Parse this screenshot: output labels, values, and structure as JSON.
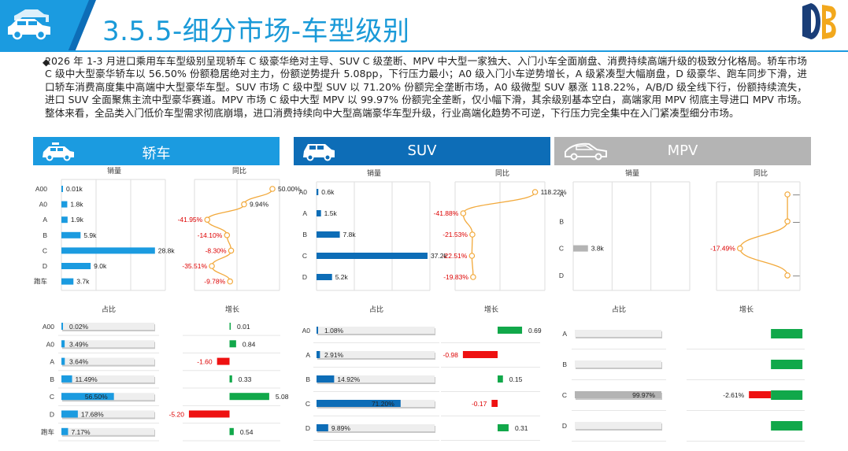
{
  "header": {
    "title": "3.5.5-细分市场-车型级别"
  },
  "summary": "2026 年 1-3 月进口乘用车车型级别呈现轿车 C 级豪华绝对主导、SUV C 级垄断、MPV 中大型一家独大、入门小车全面崩盘、消费持续高端升级的极致分化格局。轿车市场 C 级中大型豪华轿车以 56.50% 份额稳居绝对主力，份额逆势提升 5.08pp，下行压力最小；A0 级入门小车逆势增长，A 级紧凑型大幅崩盘，D 级豪华、跑车同步下滑，进口轿车消费高度集中高端中大型豪华车型。SUV 市场 C 级中型 SUV 以 71.20% 份额完全垄断市场，A0 级微型 SUV 暴涨 118.22%，A/B/D 级全线下行，份额持续流失，进口 SUV 全面聚焦主流中型豪华赛道。MPV 市场 C 级中大型 MPV 以 99.97% 份额完全垄断，仅小幅下滑，其余级别基本空白，高端家用 MPV 彻底主导进口 MPV 市场。整体来看，全品类入门低价车型需求彻底崩塌，进口消费持续向中大型高端豪华车型升级，行业高端化趋势不可逆，下行压力完全集中在入门紧凑型细分市场。",
  "panels": [
    {
      "name": "轿车",
      "color": "#1b9be0"
    },
    {
      "name": "SUV",
      "color": "#0d6db7"
    },
    {
      "name": "MPV",
      "color": "#b4b4b4"
    }
  ],
  "chart_labels": {
    "sales": "销量",
    "yoy": "同比",
    "share": "占比",
    "growth": "增长"
  },
  "chart_data": [
    {
      "type": "bar",
      "panel": "轿车",
      "categories": [
        "A00",
        "A0",
        "A",
        "B",
        "C",
        "D",
        "跑车"
      ],
      "sales": [
        0.01,
        1.8,
        1.9,
        5.9,
        28.8,
        9.0,
        3.7
      ],
      "sales_labels": [
        "0.01k",
        "1.8k",
        "1.9k",
        "5.9k",
        "28.8k",
        "9.0k",
        "3.7k"
      ],
      "yoy": [
        50.0,
        9.94,
        -41.95,
        -14.1,
        -8.3,
        -35.51,
        -9.78
      ],
      "yoy_labels": [
        "50.00%",
        "9.94%",
        "-41.95%",
        "-14.10%",
        "-8.30%",
        "-35.51%",
        "-9.78%"
      ],
      "share": [
        0.02,
        3.49,
        3.64,
        11.49,
        56.5,
        17.68,
        7.17
      ],
      "share_labels": [
        "0.02%",
        "3.49%",
        "3.64%",
        "11.49%",
        "56.50%",
        "17.68%",
        "7.17%"
      ],
      "growth": [
        0.01,
        0.84,
        -1.6,
        0.33,
        5.08,
        -5.2,
        0.54
      ],
      "growth_labels": [
        "0.01",
        "0.84",
        "-1.60",
        "0.33",
        "5.08",
        "-5.20",
        "0.54"
      ]
    },
    {
      "type": "bar",
      "panel": "SUV",
      "categories": [
        "A0",
        "A",
        "B",
        "C",
        "D"
      ],
      "sales": [
        0.6,
        1.5,
        7.8,
        37.2,
        5.2
      ],
      "sales_labels": [
        "0.6k",
        "1.5k",
        "7.8k",
        "37.2k",
        "5.2k"
      ],
      "yoy": [
        118.22,
        -41.88,
        -21.53,
        -22.51,
        -19.83
      ],
      "yoy_labels": [
        "118.22%",
        "-41.88%",
        "-21.53%",
        "-22.51%",
        "-19.83%"
      ],
      "share": [
        1.08,
        2.91,
        14.92,
        71.2,
        9.89
      ],
      "share_labels": [
        "1.08%",
        "2.91%",
        "14.92%",
        "71.20%",
        "9.89%"
      ],
      "growth": [
        0.69,
        -0.98,
        0.15,
        -0.17,
        0.31
      ],
      "growth_labels": [
        "0.69",
        "-0.98",
        "0.15",
        "-0.17",
        "0.31"
      ]
    },
    {
      "type": "bar",
      "panel": "MPV",
      "categories": [
        "A",
        "B",
        "C",
        "D"
      ],
      "sales": [
        null,
        null,
        3.8,
        null
      ],
      "sales_labels": [
        "",
        "",
        "3.8k",
        ""
      ],
      "yoy": [
        null,
        null,
        -17.49,
        null
      ],
      "yoy_labels": [
        "—",
        "—",
        "-17.49%",
        "—"
      ],
      "share": [
        null,
        null,
        99.97,
        null
      ],
      "share_labels": [
        "",
        "",
        "99.97%",
        ""
      ],
      "growth": [
        null,
        null,
        -2.61,
        null
      ],
      "growth_labels": [
        "",
        "",
        "-2.61%",
        ""
      ]
    }
  ]
}
